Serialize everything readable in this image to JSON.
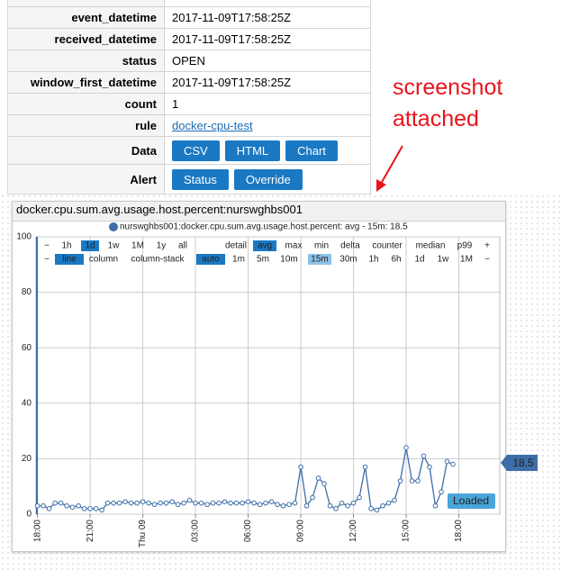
{
  "table": {
    "rows": [
      [
        "event_datetime",
        "2017-11-09T17:58:25Z"
      ],
      [
        "received_datetime",
        "2017-11-09T17:58:25Z"
      ],
      [
        "status",
        "OPEN"
      ],
      [
        "window_first_datetime",
        "2017-11-09T17:58:25Z"
      ],
      [
        "count",
        "1"
      ],
      [
        "rule",
        "docker-cpu-test"
      ]
    ],
    "button_rows": [
      {
        "label": "Data",
        "buttons": [
          "CSV",
          "HTML",
          "Chart"
        ]
      },
      {
        "label": "Alert",
        "buttons": [
          "Status",
          "Override"
        ]
      }
    ]
  },
  "annotation": [
    "screenshot",
    "attached"
  ],
  "chart_data": {
    "type": "line",
    "title": "docker.cpu.sum.avg.usage.host.percent:nurswghbs001",
    "x": [
      0,
      20,
      40,
      60,
      80,
      100,
      120,
      140,
      160,
      180,
      200,
      220,
      240,
      260,
      280,
      300,
      320,
      340,
      360,
      380,
      400,
      420,
      440,
      460,
      480,
      500,
      520,
      540,
      560,
      580,
      600,
      620,
      640,
      660,
      680,
      700,
      720,
      740,
      760,
      780,
      800,
      820,
      840,
      860,
      880,
      900,
      920,
      940,
      960,
      980,
      1000,
      1020,
      1040,
      1060,
      1080,
      1100,
      1120,
      1140,
      1160,
      1180,
      1200,
      1220,
      1240,
      1260,
      1280,
      1300,
      1320,
      1340,
      1360,
      1380,
      1400,
      1420
    ],
    "series": [
      {
        "name": "nurswghbs001:docker.cpu.sum.avg.usage.host.percent: avg - 15m: 18.5",
        "color": "#3d6ea8",
        "values": [
          3,
          3,
          2,
          4,
          4,
          3,
          2.5,
          3,
          2,
          2,
          2,
          1.5,
          4,
          4,
          4,
          4.5,
          4,
          4,
          4.5,
          4,
          3.5,
          4,
          4,
          4.5,
          3.5,
          4,
          5,
          4,
          4,
          3.5,
          4,
          4,
          4.5,
          4,
          4,
          4,
          4.5,
          4,
          3.5,
          4,
          4.5,
          3.5,
          3,
          3.5,
          4,
          17,
          3,
          6,
          13,
          11,
          3,
          2,
          4,
          3,
          4,
          6,
          17,
          2,
          1.5,
          3,
          4,
          5,
          12,
          24,
          12,
          12,
          21,
          17,
          3,
          8,
          19,
          18
        ]
      }
    ],
    "xlim": [
      -5,
      1580
    ],
    "xticks": [
      {
        "value": 0,
        "label": "18:00"
      },
      {
        "value": 180,
        "label": "21:00"
      },
      {
        "value": 360,
        "label": "Thu 09"
      },
      {
        "value": 540,
        "label": "03:00"
      },
      {
        "value": 720,
        "label": "06:00"
      },
      {
        "value": 900,
        "label": "09:00"
      },
      {
        "value": 1080,
        "label": "12:00"
      },
      {
        "value": 1260,
        "label": "15:00"
      },
      {
        "value": 1440,
        "label": "18:00"
      }
    ],
    "ylim": [
      0,
      100
    ],
    "yticks": [
      0,
      20,
      40,
      60,
      80,
      100
    ],
    "grid": true,
    "current_value": 18.5,
    "status": "Loaded",
    "toolbar": [
      [
        {
          "label": "−"
        },
        {
          "label": "1h"
        },
        {
          "label": "1d",
          "selected": true
        },
        {
          "label": "1w"
        },
        {
          "label": "1M"
        },
        {
          "label": "1y"
        },
        {
          "label": "all"
        },
        {
          "label": "detail"
        },
        {
          "label": "avg",
          "selected": true
        },
        {
          "label": "max"
        },
        {
          "label": "min"
        },
        {
          "label": "delta"
        },
        {
          "label": "counter"
        },
        {
          "label": "median"
        },
        {
          "label": "p99"
        },
        {
          "label": "+"
        }
      ],
      [
        {
          "label": "−"
        },
        {
          "label": "line",
          "selected": true
        },
        {
          "label": "column"
        },
        {
          "label": "column-stack"
        },
        {
          "label": "auto",
          "selected": true
        },
        {
          "label": "1m"
        },
        {
          "label": "5m"
        },
        {
          "label": "10m"
        },
        {
          "label": "15m",
          "selected": true
        },
        {
          "label": "30m"
        },
        {
          "label": "1h"
        },
        {
          "label": "6h"
        },
        {
          "label": "1d"
        },
        {
          "label": "1w"
        },
        {
          "label": "1M"
        },
        {
          "label": "−"
        }
      ]
    ]
  }
}
